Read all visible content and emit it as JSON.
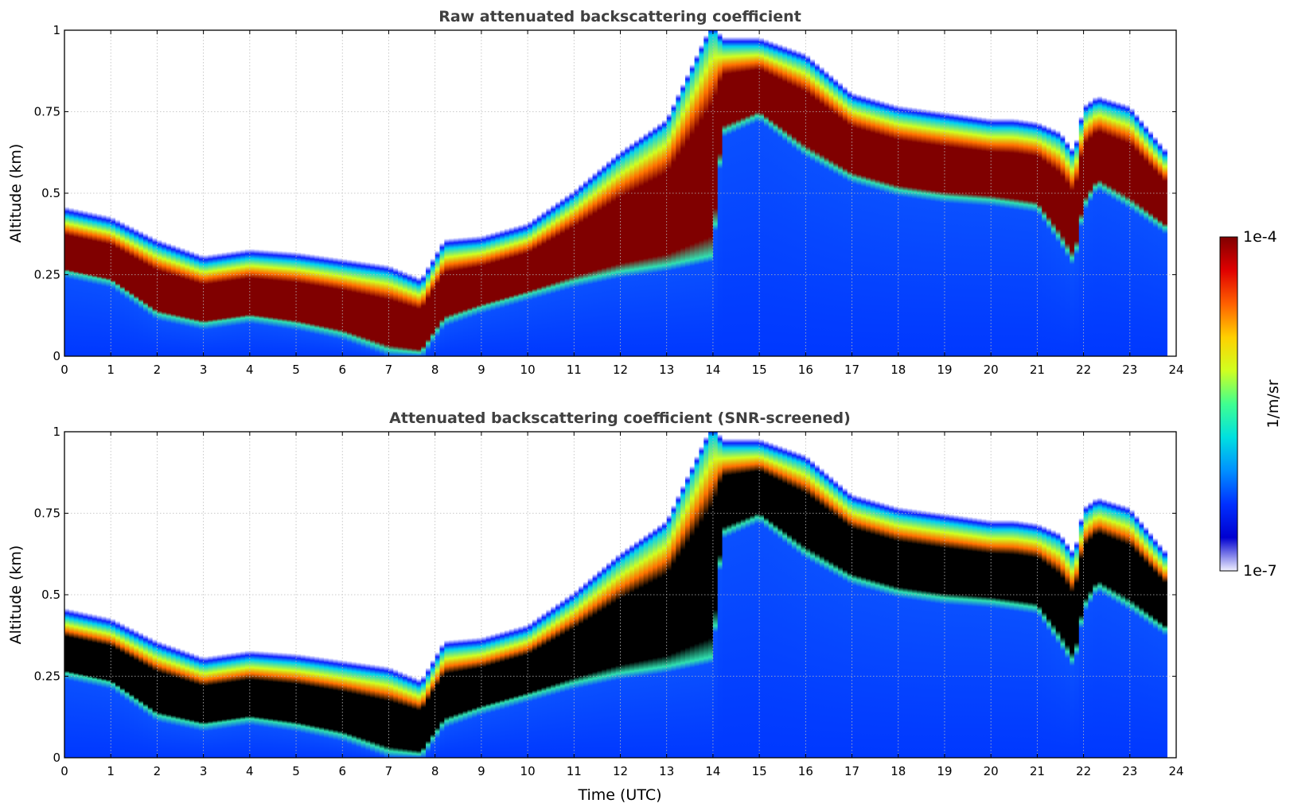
{
  "chart_data": [
    {
      "type": "heatmap",
      "title": "Raw attenuated backscattering coefficient",
      "xlabel": "",
      "ylabel": "Altitude (km)",
      "xlim": [
        0,
        24
      ],
      "ylim": [
        0,
        1
      ],
      "xticks": [
        "0",
        "1",
        "2",
        "3",
        "4",
        "5",
        "6",
        "7",
        "8",
        "9",
        "10",
        "11",
        "12",
        "13",
        "14",
        "15",
        "16",
        "17",
        "18",
        "19",
        "20",
        "21",
        "22",
        "23",
        "24"
      ],
      "yticks": [
        "0",
        "0.25",
        "0.5",
        "0.75",
        "1"
      ],
      "grid": true,
      "data_end_time": 23.8,
      "layer_top_km": {
        "x": [
          0,
          1,
          2,
          3,
          4,
          5,
          6,
          7,
          7.7,
          8.2,
          9,
          10,
          11,
          12,
          13,
          14,
          14.2,
          15,
          16,
          17,
          18,
          19,
          20,
          20.5,
          21,
          21.5,
          21.8,
          22,
          22.3,
          23,
          23.8
        ],
        "y": [
          0.43,
          0.4,
          0.33,
          0.28,
          0.3,
          0.29,
          0.27,
          0.25,
          0.21,
          0.33,
          0.34,
          0.38,
          0.48,
          0.6,
          0.7,
          1.0,
          0.95,
          0.95,
          0.9,
          0.78,
          0.74,
          0.72,
          0.7,
          0.7,
          0.69,
          0.66,
          0.6,
          0.74,
          0.77,
          0.74,
          0.6
        ]
      },
      "layer_bottom_km": {
        "x": [
          0,
          1,
          2,
          3,
          4,
          5,
          6,
          7,
          7.7,
          8.2,
          9,
          10,
          11,
          12,
          13,
          14,
          14.2,
          15,
          16,
          17,
          18,
          19,
          20,
          20.5,
          21,
          21.5,
          21.8,
          22,
          22.3,
          23,
          23.8
        ],
        "y": [
          0.25,
          0.22,
          0.12,
          0.09,
          0.11,
          0.09,
          0.06,
          0.01,
          0.0,
          0.1,
          0.14,
          0.18,
          0.22,
          0.25,
          0.27,
          0.3,
          0.68,
          0.73,
          0.62,
          0.54,
          0.5,
          0.48,
          0.47,
          0.46,
          0.45,
          0.35,
          0.28,
          0.45,
          0.52,
          0.46,
          0.38
        ]
      }
    },
    {
      "type": "heatmap",
      "title": "Attenuated backscattering coefficient (SNR-screened)",
      "xlabel": "Time (UTC)",
      "ylabel": "Altitude (km)",
      "xlim": [
        0,
        24
      ],
      "ylim": [
        0,
        1
      ],
      "xticks": [
        "0",
        "1",
        "2",
        "3",
        "4",
        "5",
        "6",
        "7",
        "8",
        "9",
        "10",
        "11",
        "12",
        "13",
        "14",
        "15",
        "16",
        "17",
        "18",
        "19",
        "20",
        "21",
        "22",
        "23",
        "24"
      ],
      "yticks": [
        "0",
        "0.25",
        "0.5",
        "0.75",
        "1"
      ],
      "grid": true,
      "data_end_time": 23.8,
      "saturated_color": "#000000",
      "layer_top_km": {
        "x": [
          0,
          1,
          2,
          3,
          4,
          5,
          6,
          7,
          7.7,
          8.2,
          9,
          10,
          11,
          12,
          13,
          14,
          14.2,
          15,
          16,
          17,
          18,
          19,
          20,
          20.5,
          21,
          21.5,
          21.8,
          22,
          22.3,
          23,
          23.8
        ],
        "y": [
          0.43,
          0.4,
          0.33,
          0.28,
          0.3,
          0.29,
          0.27,
          0.25,
          0.21,
          0.33,
          0.34,
          0.38,
          0.48,
          0.6,
          0.7,
          1.0,
          0.95,
          0.95,
          0.9,
          0.78,
          0.74,
          0.72,
          0.7,
          0.7,
          0.69,
          0.66,
          0.6,
          0.74,
          0.77,
          0.74,
          0.6
        ]
      },
      "layer_bottom_km": {
        "x": [
          0,
          1,
          2,
          3,
          4,
          5,
          6,
          7,
          7.7,
          8.2,
          9,
          10,
          11,
          12,
          13,
          14,
          14.2,
          15,
          16,
          17,
          18,
          19,
          20,
          20.5,
          21,
          21.5,
          21.8,
          22,
          22.3,
          23,
          23.8
        ],
        "y": [
          0.25,
          0.22,
          0.12,
          0.09,
          0.11,
          0.09,
          0.06,
          0.01,
          0.0,
          0.1,
          0.14,
          0.18,
          0.22,
          0.25,
          0.27,
          0.3,
          0.68,
          0.73,
          0.62,
          0.54,
          0.5,
          0.48,
          0.47,
          0.46,
          0.45,
          0.35,
          0.28,
          0.45,
          0.52,
          0.46,
          0.38
        ]
      }
    }
  ],
  "colorbar": {
    "max_label": "1e-4",
    "min_label": "1e-7",
    "unit_label": "1/m/sr",
    "colors": [
      "#f0f0ff",
      "#0000d0",
      "#0030ff",
      "#0090ff",
      "#00e0e0",
      "#40ff90",
      "#d0ff20",
      "#ffd000",
      "#ff6000",
      "#e00000",
      "#800000"
    ]
  }
}
